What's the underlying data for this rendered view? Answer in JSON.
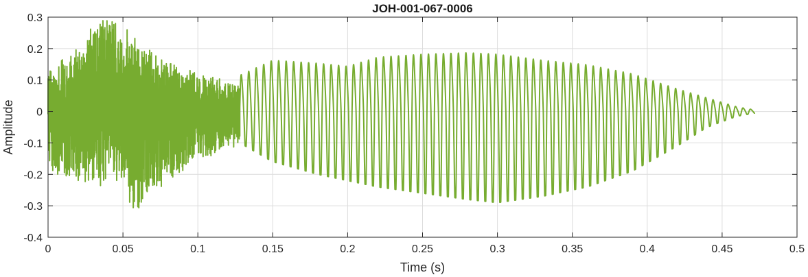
{
  "chart_data": {
    "type": "line",
    "title": "JOH-001-067-0006",
    "xlabel": "Time (s)",
    "ylabel": "Amplitude",
    "xlim": [
      0,
      0.5
    ],
    "ylim": [
      -0.4,
      0.3
    ],
    "xticks": [
      0,
      0.05,
      0.1,
      0.15,
      0.2,
      0.25,
      0.3,
      0.35,
      0.4,
      0.45,
      0.5
    ],
    "xtick_labels": [
      "0",
      "0.05",
      "0.1",
      "0.15",
      "0.2",
      "0.25",
      "0.3",
      "0.35",
      "0.4",
      "0.45",
      "0.5"
    ],
    "yticks": [
      -0.4,
      -0.3,
      -0.2,
      -0.1,
      0,
      0.1,
      0.2,
      0.3
    ],
    "ytick_labels": [
      "-0.4",
      "-0.3",
      "-0.2",
      "-0.1",
      "0",
      "0.1",
      "0.2",
      "0.3"
    ],
    "grid": true,
    "series": [
      {
        "color": "#77ac30",
        "duration": 0.472,
        "segments": [
          {
            "start": 0.0,
            "end": 0.128,
            "kind": "noise",
            "envelope_times": [
              0.0,
              0.02,
              0.032,
              0.05,
              0.056,
              0.08,
              0.1,
              0.128
            ],
            "envelope_max": [
              0.14,
              0.2,
              0.29,
              0.29,
              0.24,
              0.16,
              0.12,
              0.09
            ],
            "envelope_min": [
              -0.2,
              -0.22,
              -0.24,
              -0.22,
              -0.34,
              -0.22,
              -0.16,
              -0.11
            ]
          },
          {
            "start": 0.128,
            "end": 0.472,
            "kind": "tonal",
            "frequency_hz": 200,
            "envelope_times": [
              0.128,
              0.15,
              0.18,
              0.2,
              0.22,
              0.25,
              0.28,
              0.3,
              0.33,
              0.36,
              0.39,
              0.42,
              0.44,
              0.46,
              0.472
            ],
            "envelope_max": [
              0.12,
              0.17,
              0.16,
              0.15,
              0.18,
              0.19,
              0.195,
              0.19,
              0.17,
              0.155,
              0.125,
              0.075,
              0.045,
              0.015,
              0.005
            ],
            "envelope_min": [
              -0.1,
              -0.16,
              -0.2,
              -0.22,
              -0.24,
              -0.26,
              -0.28,
              -0.29,
              -0.27,
              -0.24,
              -0.19,
              -0.11,
              -0.05,
              -0.015,
              -0.005
            ]
          }
        ]
      }
    ]
  }
}
